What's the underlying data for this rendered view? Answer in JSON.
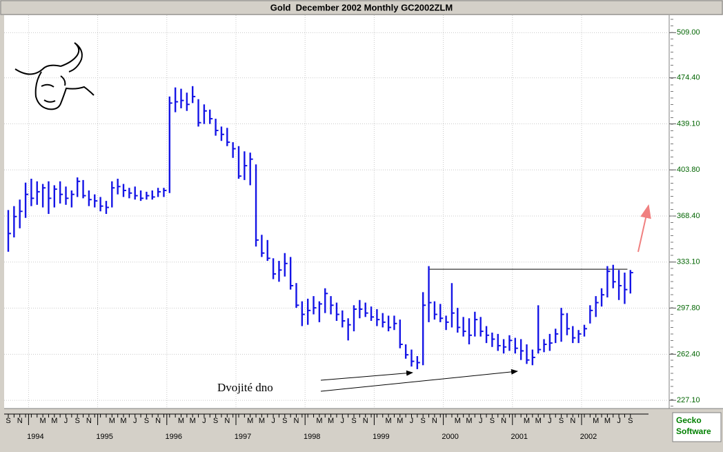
{
  "chart_data": {
    "type": "hlc",
    "title": "Gold  December 2002 Monthly GC2002ZLM",
    "color": "#1414e6",
    "x": [
      "1993-09",
      "1993-10",
      "1993-11",
      "1993-12",
      "1994-01",
      "1994-02",
      "1994-03",
      "1994-04",
      "1994-05",
      "1994-06",
      "1994-07",
      "1994-08",
      "1994-09",
      "1994-10",
      "1994-11",
      "1994-12",
      "1995-01",
      "1995-02",
      "1995-03",
      "1995-04",
      "1995-05",
      "1995-06",
      "1995-07",
      "1995-08",
      "1995-09",
      "1995-10",
      "1995-11",
      "1995-12",
      "1996-01",
      "1996-02",
      "1996-03",
      "1996-04",
      "1996-05",
      "1996-06",
      "1996-07",
      "1996-08",
      "1996-09",
      "1996-10",
      "1996-11",
      "1996-12",
      "1997-01",
      "1997-02",
      "1997-03",
      "1997-04",
      "1997-05",
      "1997-06",
      "1997-07",
      "1997-08",
      "1997-09",
      "1997-10",
      "1997-11",
      "1997-12",
      "1998-01",
      "1998-02",
      "1998-03",
      "1998-04",
      "1998-05",
      "1998-06",
      "1998-07",
      "1998-08",
      "1998-09",
      "1998-10",
      "1998-11",
      "1998-12",
      "1999-01",
      "1999-02",
      "1999-03",
      "1999-04",
      "1999-05",
      "1999-06",
      "1999-07",
      "1999-08",
      "1999-09",
      "1999-10",
      "1999-11",
      "1999-12",
      "2000-01",
      "2000-02",
      "2000-03",
      "2000-04",
      "2000-05",
      "2000-06",
      "2000-07",
      "2000-08",
      "2000-09",
      "2000-10",
      "2000-11",
      "2000-12",
      "2001-01",
      "2001-02",
      "2001-03",
      "2001-04",
      "2001-05",
      "2001-06",
      "2001-07",
      "2001-08",
      "2001-09",
      "2001-10",
      "2001-11",
      "2001-12",
      "2002-01",
      "2002-02",
      "2002-03",
      "2002-04",
      "2002-05",
      "2002-06",
      "2002-07",
      "2002-08",
      "2002-09"
    ],
    "high": [
      373,
      376,
      381,
      394,
      397,
      395,
      393,
      395,
      392,
      395,
      391,
      388,
      398,
      396,
      388,
      385,
      383,
      380,
      395,
      397,
      393,
      390,
      391,
      388,
      387,
      388,
      390,
      390,
      460,
      467,
      466,
      463,
      468,
      458,
      454,
      450,
      443,
      437,
      436,
      425,
      422,
      418,
      417,
      408,
      354,
      350,
      336,
      334,
      340,
      337,
      317,
      303,
      305,
      307,
      303,
      313,
      307,
      302,
      296,
      290,
      300,
      304,
      302,
      299,
      297,
      294,
      292,
      292,
      289,
      270,
      266,
      261,
      310,
      330,
      303,
      301,
      292,
      317,
      298,
      291,
      290,
      295,
      291,
      284,
      279,
      278,
      274,
      277,
      275,
      274,
      270,
      266,
      300,
      274,
      278,
      282,
      298,
      294,
      284,
      281,
      285,
      300,
      307,
      313,
      330,
      331,
      327,
      325,
      327
    ],
    "low": [
      341,
      352,
      359,
      367,
      376,
      377,
      375,
      370,
      375,
      378,
      377,
      375,
      383,
      382,
      376,
      375,
      372,
      370,
      375,
      385,
      383,
      382,
      381,
      380,
      381,
      381,
      383,
      383,
      386,
      448,
      451,
      449,
      455,
      437,
      439,
      439,
      430,
      426,
      422,
      413,
      397,
      396,
      392,
      345,
      337,
      334,
      320,
      318,
      322,
      312,
      298,
      284,
      285,
      293,
      287,
      294,
      293,
      288,
      283,
      273,
      280,
      290,
      291,
      288,
      284,
      283,
      280,
      281,
      267,
      259,
      253,
      251,
      254,
      287,
      289,
      287,
      281,
      283,
      279,
      276,
      270,
      276,
      276,
      271,
      268,
      265,
      263,
      265,
      263,
      258,
      255,
      254,
      263,
      264,
      265,
      271,
      272,
      277,
      271,
      271,
      276,
      286,
      291,
      299,
      306,
      313,
      304,
      301,
      309
    ],
    "close": [
      355,
      368,
      372,
      385,
      382,
      387,
      390,
      382,
      389,
      385,
      382,
      385,
      395,
      384,
      381,
      380,
      376,
      375,
      390,
      391,
      388,
      386,
      384,
      382,
      384,
      383,
      387,
      388,
      455,
      456,
      457,
      454,
      460,
      440,
      449,
      443,
      434,
      431,
      425,
      420,
      399,
      407,
      412,
      350,
      340,
      336,
      324,
      327,
      332,
      315,
      300,
      293,
      296,
      298,
      301,
      309,
      300,
      293,
      288,
      285,
      297,
      297,
      294,
      291,
      289,
      287,
      283,
      286,
      270,
      262,
      257,
      256,
      300,
      302,
      293,
      290,
      287,
      294,
      283,
      280,
      277,
      289,
      280,
      277,
      274,
      269,
      268,
      273,
      267,
      265,
      258,
      260,
      266,
      270,
      271,
      278,
      293,
      282,
      275,
      278,
      282,
      296,
      302,
      308,
      326,
      318,
      315,
      312,
      325
    ],
    "ylim": [
      220.8,
      522.4
    ],
    "yticks": [
      {
        "value": 227.1,
        "label": "227.10"
      },
      {
        "value": 262.4,
        "label": "262.40"
      },
      {
        "value": 297.8,
        "label": "297.80"
      },
      {
        "value": 333.1,
        "label": "333.10"
      },
      {
        "value": 368.4,
        "label": "368.40"
      },
      {
        "value": 403.8,
        "label": "403.80"
      },
      {
        "value": 439.1,
        "label": "439.10"
      },
      {
        "value": 474.4,
        "label": "474.40"
      },
      {
        "value": 509.0,
        "label": "509.00"
      }
    ],
    "year_ticks": [
      {
        "value": "1994-01",
        "label": "1994"
      },
      {
        "value": "1995-01",
        "label": "1995"
      },
      {
        "value": "1996-01",
        "label": "1996"
      },
      {
        "value": "1997-01",
        "label": "1997"
      },
      {
        "value": "1998-01",
        "label": "1998"
      },
      {
        "value": "1999-01",
        "label": "1999"
      },
      {
        "value": "2000-01",
        "label": "2000"
      },
      {
        "value": "2001-01",
        "label": "2001"
      },
      {
        "value": "2002-01",
        "label": "2002"
      }
    ],
    "month_ticks": [
      {
        "value": "1993-09",
        "label": "S"
      },
      {
        "value": "1993-11",
        "label": "N"
      },
      {
        "value": "1994-03",
        "label": "M"
      },
      {
        "value": "1994-05",
        "label": "M"
      },
      {
        "value": "1994-07",
        "label": "J"
      },
      {
        "value": "1994-09",
        "label": "S"
      },
      {
        "value": "1994-11",
        "label": "N"
      },
      {
        "value": "1995-03",
        "label": "M"
      },
      {
        "value": "1995-05",
        "label": "M"
      },
      {
        "value": "1995-07",
        "label": "J"
      },
      {
        "value": "1995-09",
        "label": "S"
      },
      {
        "value": "1995-11",
        "label": "N"
      },
      {
        "value": "1996-03",
        "label": "M"
      },
      {
        "value": "1996-05",
        "label": "M"
      },
      {
        "value": "1996-07",
        "label": "J"
      },
      {
        "value": "1996-09",
        "label": "S"
      },
      {
        "value": "1996-11",
        "label": "N"
      },
      {
        "value": "1997-03",
        "label": "M"
      },
      {
        "value": "1997-05",
        "label": "M"
      },
      {
        "value": "1997-07",
        "label": "J"
      },
      {
        "value": "1997-09",
        "label": "S"
      },
      {
        "value": "1997-11",
        "label": "N"
      },
      {
        "value": "1998-03",
        "label": "M"
      },
      {
        "value": "1998-05",
        "label": "M"
      },
      {
        "value": "1998-07",
        "label": "J"
      },
      {
        "value": "1998-09",
        "label": "S"
      },
      {
        "value": "1998-11",
        "label": "N"
      },
      {
        "value": "1999-03",
        "label": "M"
      },
      {
        "value": "1999-05",
        "label": "M"
      },
      {
        "value": "1999-07",
        "label": "J"
      },
      {
        "value": "1999-09",
        "label": "S"
      },
      {
        "value": "1999-11",
        "label": "N"
      },
      {
        "value": "2000-03",
        "label": "M"
      },
      {
        "value": "2000-05",
        "label": "M"
      },
      {
        "value": "2000-07",
        "label": "J"
      },
      {
        "value": "2000-09",
        "label": "S"
      },
      {
        "value": "2000-11",
        "label": "N"
      },
      {
        "value": "2001-03",
        "label": "M"
      },
      {
        "value": "2001-05",
        "label": "M"
      },
      {
        "value": "2001-07",
        "label": "J"
      },
      {
        "value": "2001-09",
        "label": "S"
      },
      {
        "value": "2001-11",
        "label": "N"
      },
      {
        "value": "2002-03",
        "label": "M"
      },
      {
        "value": "2002-05",
        "label": "M"
      },
      {
        "value": "2002-07",
        "label": "J"
      },
      {
        "value": "2002-09",
        "label": "S"
      }
    ],
    "resistance": {
      "value": 327.6,
      "from": "1999-10",
      "to": "2002-08"
    },
    "annotation": "Dvojité dno",
    "brand": [
      "Gecko",
      "Software"
    ],
    "grid": true
  }
}
